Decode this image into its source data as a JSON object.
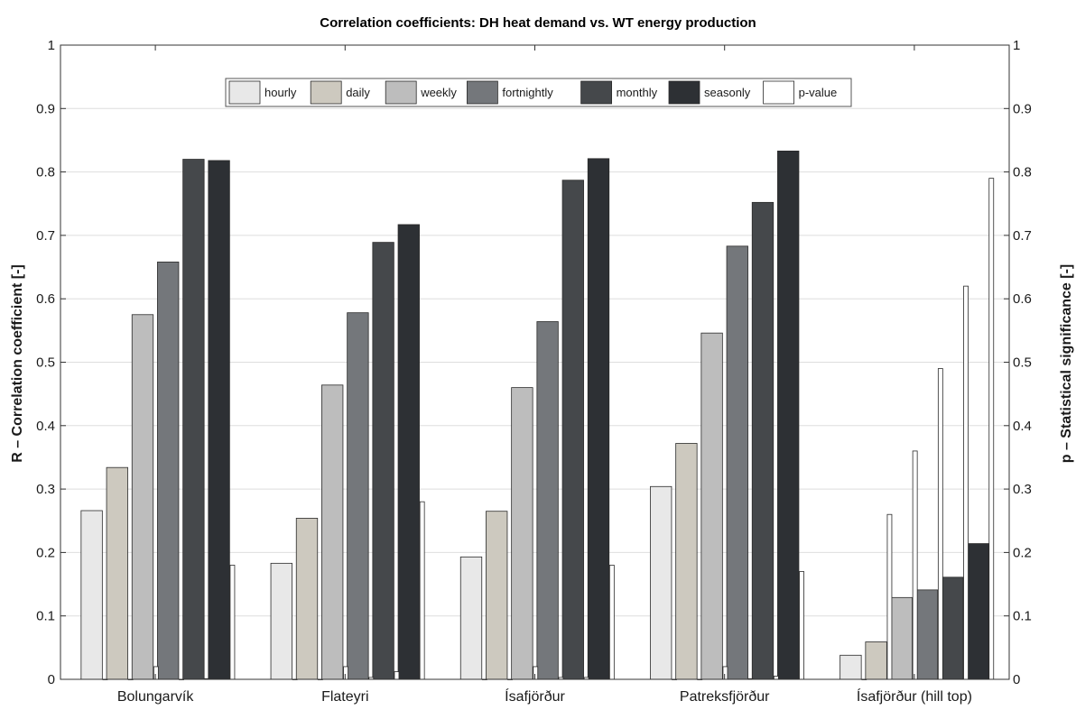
{
  "chart_data": {
    "type": "bar",
    "title": "Correlation coefficients: DH heat demand vs. WT energy production",
    "ylabel": "R – Correlation coefficient [-]",
    "y2label": "p – Statistical significance [-]",
    "ylim": [
      0,
      1
    ],
    "y2lim": [
      0,
      1
    ],
    "yticks": [
      "0",
      "0.1",
      "0.2",
      "0.3",
      "0.4",
      "0.5",
      "0.6",
      "0.7",
      "0.8",
      "0.9",
      "1"
    ],
    "grid": true,
    "legend_position": "top-center",
    "categories": [
      "Bolungarvík",
      "Flateyri",
      "Ísafjörður",
      "Patreksfjörður",
      "Ísafjörður (hill top)"
    ],
    "series": [
      {
        "name": "hourly",
        "color": "#e8e8e8",
        "values": [
          0.266,
          0.183,
          0.193,
          0.304,
          0.038
        ]
      },
      {
        "name": "daily",
        "color": "#cdc9bf",
        "values": [
          0.334,
          0.254,
          0.265,
          0.372,
          0.059
        ]
      },
      {
        "name": "weekly",
        "color": "#bdbdbd",
        "values": [
          0.575,
          0.464,
          0.46,
          0.546,
          0.129
        ]
      },
      {
        "name": "fortnightly",
        "color": "#74777b",
        "values": [
          0.658,
          0.578,
          0.564,
          0.683,
          0.141
        ]
      },
      {
        "name": "monthly",
        "color": "#45484b",
        "values": [
          0.82,
          0.689,
          0.787,
          0.752,
          0.161
        ]
      },
      {
        "name": "seasonly",
        "color": "#2d3034",
        "values": [
          0.818,
          0.717,
          0.821,
          0.833,
          0.214
        ]
      }
    ],
    "p_value": {
      "name": "p-value",
      "color": "#ffffff",
      "values": [
        [
          0.0,
          0.0,
          0.02,
          0.0,
          0.001,
          0.18
        ],
        [
          0.0,
          0.0,
          0.02,
          0.003,
          0.012,
          0.28
        ],
        [
          0.0,
          0.0,
          0.02,
          0.003,
          0.003,
          0.18
        ],
        [
          0.0,
          0.0,
          0.02,
          0.001,
          0.005,
          0.17
        ],
        [
          0.0,
          0.26,
          0.36,
          0.49,
          0.62,
          0.79
        ]
      ]
    }
  }
}
